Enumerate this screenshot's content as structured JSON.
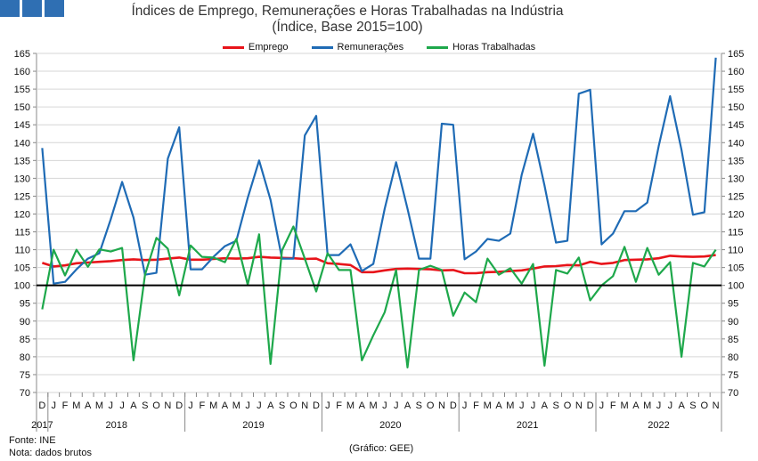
{
  "header": {
    "title": "Índices de Emprego, Remunerações e Horas Trabalhadas na Indústria",
    "subtitle": "(Índice, Base 2015=100)"
  },
  "brand": {
    "colors": [
      "#2f6fb3",
      "#2f6fb3",
      "#2f6fb3"
    ]
  },
  "footer": {
    "source": "Fonte: INE",
    "note": "Nota: dados brutos",
    "credit": "(Gráfico: GEE)"
  },
  "chart_data": {
    "type": "line",
    "title": "Índices de Emprego, Remunerações e Horas Trabalhadas na Indústria",
    "subtitle": "(Índice, Base 2015=100)",
    "xlabel": "",
    "ylabel": "",
    "ylim": [
      70,
      165
    ],
    "yticks": [
      70,
      75,
      80,
      85,
      90,
      95,
      100,
      105,
      110,
      115,
      120,
      125,
      130,
      135,
      140,
      145,
      150,
      155,
      160,
      165
    ],
    "right_axis_mirror": true,
    "grid": true,
    "reference_line": 100,
    "legend_position": "top-center",
    "x": [
      "2017-12",
      "2018-01",
      "2018-02",
      "2018-03",
      "2018-04",
      "2018-05",
      "2018-06",
      "2018-07",
      "2018-08",
      "2018-09",
      "2018-10",
      "2018-11",
      "2018-12",
      "2019-01",
      "2019-02",
      "2019-03",
      "2019-04",
      "2019-05",
      "2019-06",
      "2019-07",
      "2019-08",
      "2019-09",
      "2019-10",
      "2019-11",
      "2019-12",
      "2020-01",
      "2020-02",
      "2020-03",
      "2020-04",
      "2020-05",
      "2020-06",
      "2020-07",
      "2020-08",
      "2020-09",
      "2020-10",
      "2020-11",
      "2020-12",
      "2021-01",
      "2021-02",
      "2021-03",
      "2021-04",
      "2021-05",
      "2021-06",
      "2021-07",
      "2021-08",
      "2021-09",
      "2021-10",
      "2021-11",
      "2021-12",
      "2022-01",
      "2022-02",
      "2022-03",
      "2022-04",
      "2022-05",
      "2022-06",
      "2022-07",
      "2022-08",
      "2022-09",
      "2022-10",
      "2022-11"
    ],
    "month_labels": [
      "D",
      "J",
      "F",
      "M",
      "A",
      "M",
      "J",
      "J",
      "A",
      "S",
      "O",
      "N",
      "D",
      "J",
      "F",
      "M",
      "A",
      "M",
      "J",
      "J",
      "A",
      "S",
      "O",
      "N",
      "D",
      "J",
      "F",
      "M",
      "A",
      "M",
      "J",
      "J",
      "A",
      "S",
      "O",
      "N",
      "D",
      "J",
      "F",
      "M",
      "A",
      "M",
      "J",
      "J",
      "A",
      "S",
      "O",
      "N",
      "D",
      "J",
      "F",
      "M",
      "A",
      "M",
      "J",
      "J",
      "A",
      "S",
      "O",
      "N"
    ],
    "year_labels": [
      "2017",
      "2018",
      "2019",
      "2020",
      "2021",
      "2022"
    ],
    "series": [
      {
        "name": "Emprego",
        "color": "#e8141a",
        "values": [
          106.3,
          105.3,
          105.6,
          106.2,
          106.4,
          106.6,
          106.8,
          107.1,
          107.3,
          107.1,
          107.2,
          107.5,
          107.8,
          107.2,
          107.2,
          107.4,
          107.6,
          107.5,
          107.6,
          108.0,
          107.8,
          107.7,
          107.6,
          107.4,
          107.5,
          106.2,
          106.0,
          105.7,
          103.7,
          103.7,
          104.2,
          104.6,
          104.7,
          104.6,
          104.5,
          104.2,
          104.3,
          103.4,
          103.4,
          103.7,
          103.8,
          104.0,
          104.2,
          104.7,
          105.3,
          105.4,
          105.7,
          105.6,
          106.6,
          106.0,
          106.3,
          107.1,
          107.2,
          107.3,
          107.6,
          108.3,
          108.1,
          108.0,
          108.1,
          108.5
        ]
      },
      {
        "name": "Remunerações",
        "color": "#1f6bb5",
        "values": [
          138.5,
          100.5,
          101.0,
          104.5,
          107.5,
          109.0,
          118.5,
          129.0,
          119.0,
          103.0,
          103.5,
          135.5,
          144.3,
          104.5,
          104.5,
          108.0,
          111.0,
          112.5,
          124.5,
          135.0,
          124.0,
          107.5,
          107.5,
          142.0,
          147.5,
          108.5,
          108.5,
          111.5,
          104.0,
          106.0,
          121.5,
          134.5,
          121.5,
          107.5,
          107.5,
          145.3,
          145.0,
          107.3,
          109.5,
          113.0,
          112.5,
          114.5,
          131.0,
          142.5,
          128.0,
          112.0,
          112.5,
          153.7,
          154.8,
          111.5,
          114.5,
          120.8,
          120.8,
          123.2,
          139.0,
          153.0,
          138.0,
          119.8,
          120.5,
          163.8
        ]
      },
      {
        "name": "Horas Trabalhadas",
        "color": "#1ea84b",
        "values": [
          93.3,
          110.0,
          102.8,
          110.0,
          105.2,
          110.1,
          109.5,
          110.5,
          79.0,
          103.0,
          113.3,
          110.3,
          97.2,
          111.2,
          108.0,
          107.8,
          106.5,
          113.0,
          100.2,
          114.3,
          78.0,
          109.8,
          116.5,
          107.5,
          98.3,
          109.0,
          104.3,
          104.3,
          79.0,
          86.0,
          92.5,
          104.3,
          77.0,
          104.3,
          105.5,
          104.3,
          91.5,
          98.0,
          95.3,
          107.5,
          103.0,
          104.8,
          100.5,
          106.0,
          77.5,
          104.3,
          103.3,
          107.8,
          95.8,
          100.0,
          102.6,
          110.8,
          101.0,
          110.5,
          103.0,
          106.5,
          80.0,
          106.3,
          105.3,
          110.0
        ]
      }
    ]
  }
}
